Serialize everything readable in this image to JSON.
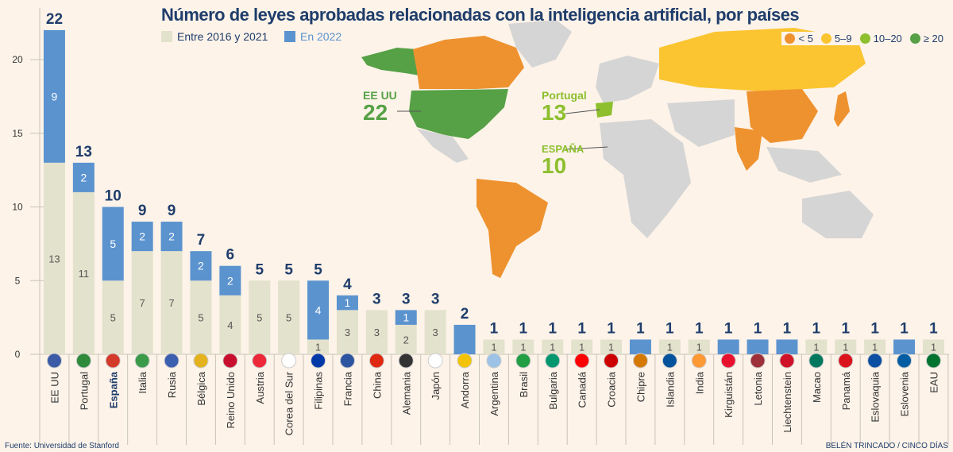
{
  "title": "Número de leyes aprobadas relacionadas con la inteligencia artificial, por países",
  "legend": {
    "base": "Entre 2016 y 2021",
    "y2022": "En 2022"
  },
  "map_legend": [
    {
      "label": "< 5",
      "color": "#ee922f"
    },
    {
      "label": "5–9",
      "color": "#fbc531"
    },
    {
      "label": "10–20",
      "color": "#8dbf2e"
    },
    {
      "label": "≥ 20",
      "color": "#56a146"
    }
  ],
  "map_labels": {
    "usa": {
      "name": "EE UU",
      "value": "22"
    },
    "portugal": {
      "name": "Portugal",
      "value": "13"
    },
    "spain": {
      "name": "ESPAÑA",
      "value": "10"
    }
  },
  "source": "Fuente: Universidad de Stanford",
  "credit": "BELÉN TRINCADO / CINCO DÍAS",
  "colors": {
    "base": "#e3e2cc",
    "y2022": "#5b93cf",
    "title": "#1f3d6b"
  },
  "chart_data": {
    "type": "bar",
    "stacked": true,
    "ylim": [
      0,
      23
    ],
    "yticks": [
      0,
      5,
      10,
      15,
      20
    ],
    "categories": [
      "EE UU",
      "Portugal",
      "España",
      "Italia",
      "Rusia",
      "Bélgica",
      "Reino Unido",
      "Austria",
      "Corea del Sur",
      "Filipinas",
      "Francia",
      "China",
      "Alemania",
      "Japón",
      "Andorra",
      "Argentina",
      "Brasil",
      "Bulgaria",
      "Canadá",
      "Croacia",
      "Chipre",
      "Islandia",
      "India",
      "Kirguistán",
      "Letonia",
      "Liechtenstein",
      "Macao",
      "Panamá",
      "Eslovaquia",
      "Eslovenia",
      "EAU"
    ],
    "series": [
      {
        "name": "Entre 2016 y 2021",
        "values": [
          13,
          11,
          5,
          7,
          7,
          5,
          4,
          5,
          5,
          1,
          3,
          3,
          2,
          3,
          0,
          1,
          1,
          1,
          1,
          1,
          0,
          1,
          1,
          0,
          0,
          0,
          1,
          1,
          1,
          0,
          1
        ]
      },
      {
        "name": "En 2022",
        "values": [
          9,
          2,
          5,
          2,
          2,
          2,
          2,
          0,
          0,
          4,
          1,
          0,
          1,
          0,
          2,
          0,
          0,
          0,
          0,
          0,
          1,
          0,
          0,
          1,
          1,
          1,
          0,
          0,
          0,
          1,
          0
        ]
      }
    ],
    "totals": [
      22,
      13,
      10,
      9,
      9,
      7,
      6,
      5,
      5,
      5,
      4,
      3,
      3,
      3,
      2,
      1,
      1,
      1,
      1,
      1,
      1,
      1,
      1,
      1,
      1,
      1,
      1,
      1,
      1,
      1,
      1
    ]
  }
}
